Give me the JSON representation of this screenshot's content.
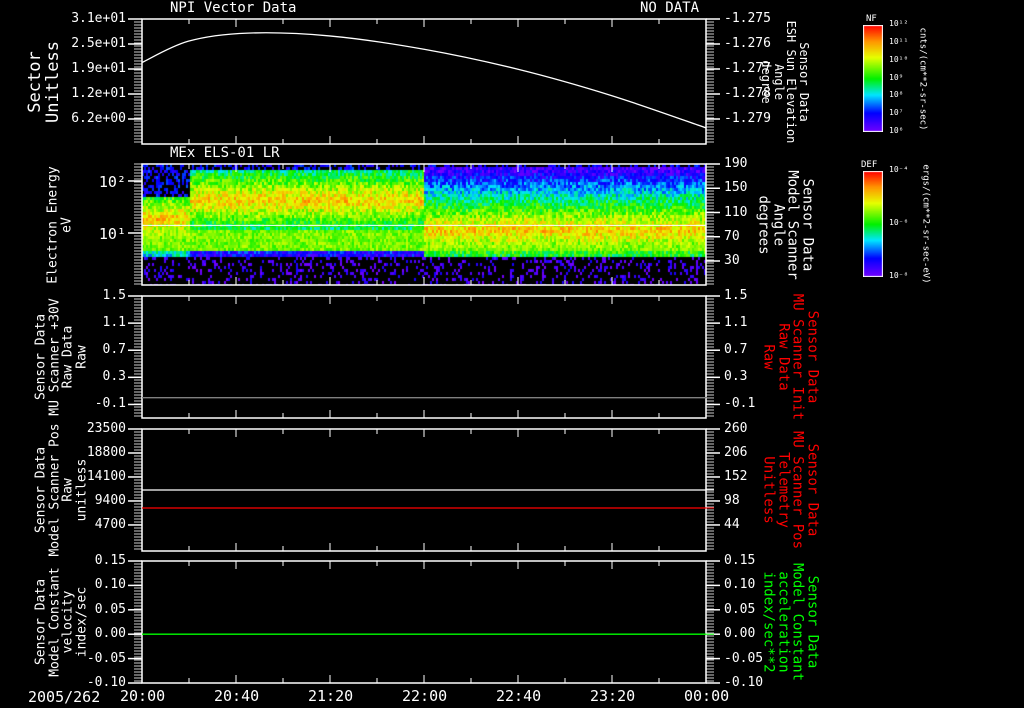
{
  "colors": {
    "red": "#ff0000",
    "green": "#00ff00",
    "gray": "#808080",
    "white": "#ffffff"
  },
  "header": {
    "panel1_title": "NPI Vector Data",
    "panel1_status": "NO DATA",
    "panel2_title": "MEx ELS-01 LR"
  },
  "footer": {
    "date": "2005/262",
    "time_ticks": [
      "20:00",
      "20:40",
      "21:20",
      "22:00",
      "22:40",
      "23:20",
      "00:00"
    ]
  },
  "colorbars": [
    {
      "title": "NF",
      "ticks": [
        "10¹²",
        "10¹¹",
        "10¹⁰",
        "10⁹",
        "10⁸",
        "10⁷",
        "10⁶"
      ],
      "units": "cnts/(cm**2-sr-sec)"
    },
    {
      "title": "DEF",
      "ticks": [
        "10⁻⁴",
        "10⁻⁶",
        "10⁻⁸"
      ],
      "units": "ergs/(cm**2-sr-sec-eV)"
    }
  ],
  "chart_data": [
    {
      "type": "line",
      "title": "NPI Vector Data",
      "status": "NO DATA",
      "ylabel": [
        "Sector",
        "Unitless"
      ],
      "ylabel_right": [
        "Sensor Data",
        "ESH Sun Elevation",
        "Angle",
        "degree"
      ],
      "yticks": [
        "3.1e+01",
        "2.5e+01",
        "1.9e+01",
        "1.2e+01",
        "6.2e+00"
      ],
      "ytick_values": [
        31,
        24.8,
        18.6,
        12.4,
        6.2
      ],
      "yticks_right": [
        "-1.275",
        "-1.276",
        "-1.277",
        "-1.278",
        "-1.279"
      ],
      "ylim": [
        0,
        31
      ],
      "x_hours": [
        0,
        0.33,
        0.75,
        1.33,
        2.0,
        2.67,
        3.33,
        4.0
      ],
      "series": [
        {
          "name": "sector",
          "color": "#ffffff",
          "values": [
            20.2,
            25.5,
            27.5,
            26.8,
            23.5,
            18.5,
            12.0,
            4.0
          ]
        }
      ]
    },
    {
      "type": "heatmap",
      "title": "MEx ELS-01 LR",
      "ylabel": [
        "Electron Energy",
        "eV"
      ],
      "ylabel_right": [
        "Sensor Data",
        "Model Scanner",
        "Angle",
        "degrees"
      ],
      "yticks": [
        "10²",
        "10¹"
      ],
      "ytick_values": [
        100,
        10
      ],
      "yticks_right": [
        "190",
        "150",
        "110",
        "70",
        "30"
      ],
      "ylim": [
        1,
        212
      ],
      "y_scale": "log",
      "overlay_line_energy": 14,
      "segments": [
        {
          "from_hour": 0,
          "to_hour": 0.33,
          "peak_energy": 20,
          "low_cutoff": 3.5,
          "high_cutoff": 55
        },
        {
          "from_hour": 0.33,
          "to_hour": 2.0,
          "peak_energy": 45,
          "low_cutoff": 3.5,
          "high_cutoff": 170
        },
        {
          "from_hour": 2.0,
          "to_hour": 4.0,
          "peak_energy": 12,
          "low_cutoff": 3.5,
          "high_cutoff": 190
        }
      ]
    },
    {
      "type": "line",
      "ylabel": [
        "Sensor Data",
        "MU Scanner +30V",
        "Raw Data",
        "Raw"
      ],
      "ylabel_right": [
        "Sensor Data",
        "MU Scanner Init",
        "Raw Data",
        "Raw"
      ],
      "yticks": [
        "1.5",
        "1.1",
        "0.7",
        "0.3",
        "-0.1"
      ],
      "ytick_values": [
        1.5,
        1.1,
        0.7,
        0.3,
        -0.1
      ],
      "yticks_right": [
        "1.5",
        "1.1",
        "0.7",
        "0.3",
        "-0.1"
      ],
      "ylim": [
        -0.3,
        1.5
      ],
      "series": [
        {
          "name": "raw",
          "color": "#808080",
          "values": [
            0.0,
            0.0
          ]
        }
      ]
    },
    {
      "type": "line",
      "ylabel": [
        "Sensor Data",
        "Model Scanner Pos",
        "Raw",
        "unitless"
      ],
      "ylabel_right": [
        "Sensor Data",
        "MU Scanner Pos",
        "Telemetry",
        "Unitless"
      ],
      "yticks": [
        "23500",
        "18800",
        "14100",
        "9400",
        "4700"
      ],
      "ytick_values": [
        23500,
        18800,
        14100,
        9400,
        4700
      ],
      "yticks_right": [
        "260",
        "206",
        "152",
        "98",
        "44"
      ],
      "ylim": [
        -400,
        23500
      ],
      "series": [
        {
          "name": "model",
          "color": "#ffffff",
          "values": [
            11550,
            11550
          ]
        },
        {
          "name": "telemetry",
          "color": "#ff0000",
          "values": [
            8030,
            8030
          ]
        }
      ]
    },
    {
      "type": "line",
      "ylabel": [
        "Sensor Data",
        "Model Constant",
        "velocity",
        "index/sec"
      ],
      "ylabel_right": [
        "Sensor Data",
        "Model Constant",
        "acceleration",
        "index/sec**2"
      ],
      "yticks": [
        "0.15",
        "0.10",
        "0.05",
        "0.00",
        "-0.05",
        "-0.10"
      ],
      "ytick_values": [
        0.15,
        0.1,
        0.05,
        0.0,
        -0.05,
        -0.1
      ],
      "yticks_right": [
        "0.15",
        "0.10",
        "0.05",
        "0.00",
        "-0.05",
        "-0.10"
      ],
      "ylim": [
        -0.1,
        0.15
      ],
      "series": [
        {
          "name": "velocity",
          "color": "#00ff00",
          "values": [
            0.0,
            0.0
          ]
        }
      ]
    }
  ]
}
